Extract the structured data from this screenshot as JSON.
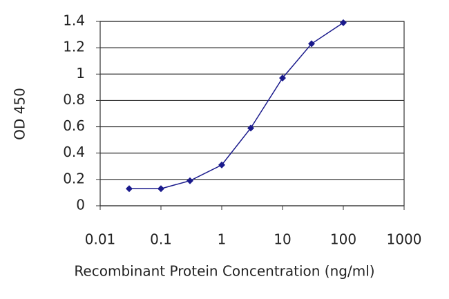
{
  "chart_data": {
    "type": "line",
    "x_label": "Recombinant Protein Concentration (ng/ml)",
    "y_label": "OD 450",
    "x": [
      0.03,
      0.1,
      0.3,
      1,
      3,
      10,
      30,
      100
    ],
    "series": [
      {
        "color": "#1a1a8c",
        "values": [
          0.13,
          0.13,
          0.19,
          0.31,
          0.59,
          0.97,
          1.23,
          1.39
        ]
      }
    ],
    "xlog": true,
    "xlim": [
      0.01,
      1000
    ],
    "xticks": [
      0.01,
      0.1,
      1,
      10,
      100,
      1000
    ],
    "ylim": [
      0,
      1.4
    ],
    "yticks": [
      0,
      0.2,
      0.4,
      0.6,
      0.8,
      1,
      1.2,
      1.4
    ],
    "grid": true
  }
}
